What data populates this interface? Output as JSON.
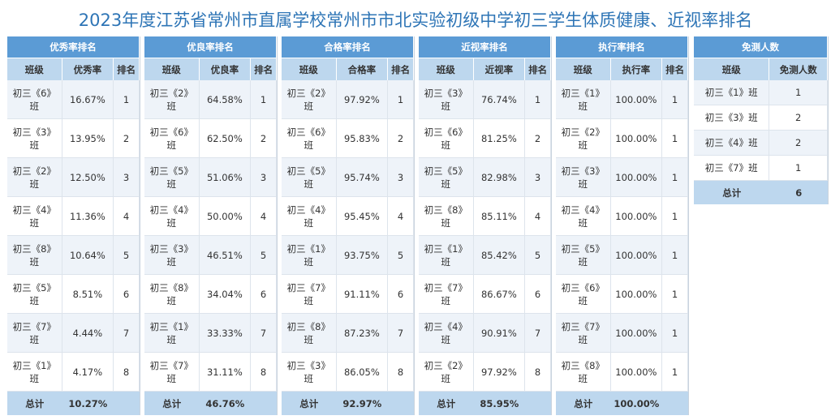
{
  "title": "2023年度江苏省常州市直属学校常州市市北实验初级中学初三学生体质健康、近视率排名",
  "panels": [
    {
      "header": "优秀率排名",
      "cols": [
        "班级",
        "优秀率",
        "排名"
      ],
      "rows": [
        [
          "初三《6》班",
          "16.67%",
          "1"
        ],
        [
          "初三《3》班",
          "13.95%",
          "2"
        ],
        [
          "初三《2》班",
          "12.50%",
          "3"
        ],
        [
          "初三《4》班",
          "11.36%",
          "4"
        ],
        [
          "初三《8》班",
          "10.64%",
          "5"
        ],
        [
          "初三《5》班",
          "8.51%",
          "6"
        ],
        [
          "初三《7》班",
          "4.44%",
          "7"
        ],
        [
          "初三《1》班",
          "4.17%",
          "8"
        ]
      ],
      "total_label": "总计",
      "total_value": "10.27%"
    },
    {
      "header": "优良率排名",
      "cols": [
        "班级",
        "优良率",
        "排名"
      ],
      "rows": [
        [
          "初三《2》班",
          "64.58%",
          "1"
        ],
        [
          "初三《6》班",
          "62.50%",
          "2"
        ],
        [
          "初三《5》班",
          "51.06%",
          "3"
        ],
        [
          "初三《4》班",
          "50.00%",
          "4"
        ],
        [
          "初三《3》班",
          "46.51%",
          "5"
        ],
        [
          "初三《8》班",
          "34.04%",
          "6"
        ],
        [
          "初三《1》班",
          "33.33%",
          "7"
        ],
        [
          "初三《7》班",
          "31.11%",
          "8"
        ]
      ],
      "total_label": "总计",
      "total_value": "46.76%"
    },
    {
      "header": "合格率排名",
      "cols": [
        "班级",
        "合格率",
        "排名"
      ],
      "rows": [
        [
          "初三《2》班",
          "97.92%",
          "1"
        ],
        [
          "初三《6》班",
          "95.83%",
          "2"
        ],
        [
          "初三《5》班",
          "95.74%",
          "3"
        ],
        [
          "初三《4》班",
          "95.45%",
          "4"
        ],
        [
          "初三《1》班",
          "93.75%",
          "5"
        ],
        [
          "初三《7》班",
          "91.11%",
          "6"
        ],
        [
          "初三《8》班",
          "87.23%",
          "7"
        ],
        [
          "初三《3》班",
          "86.05%",
          "8"
        ]
      ],
      "total_label": "总计",
      "total_value": "92.97%"
    },
    {
      "header": "近视率排名",
      "cols": [
        "班级",
        "近视率",
        "排名"
      ],
      "rows": [
        [
          "初三《3》班",
          "76.74%",
          "1"
        ],
        [
          "初三《6》班",
          "81.25%",
          "2"
        ],
        [
          "初三《5》班",
          "82.98%",
          "3"
        ],
        [
          "初三《8》班",
          "85.11%",
          "4"
        ],
        [
          "初三《1》班",
          "85.42%",
          "5"
        ],
        [
          "初三《7》班",
          "86.67%",
          "6"
        ],
        [
          "初三《4》班",
          "90.91%",
          "7"
        ],
        [
          "初三《2》班",
          "97.92%",
          "8"
        ]
      ],
      "total_label": "总计",
      "total_value": "85.95%"
    },
    {
      "header": "执行率排名",
      "cols": [
        "班级",
        "执行率",
        "排名"
      ],
      "rows": [
        [
          "初三《1》班",
          "100.00%",
          "1"
        ],
        [
          "初三《2》班",
          "100.00%",
          "1"
        ],
        [
          "初三《3》班",
          "100.00%",
          "1"
        ],
        [
          "初三《4》班",
          "100.00%",
          "1"
        ],
        [
          "初三《5》班",
          "100.00%",
          "1"
        ],
        [
          "初三《6》班",
          "100.00%",
          "1"
        ],
        [
          "初三《7》班",
          "100.00%",
          "1"
        ],
        [
          "初三《8》班",
          "100.00%",
          "1"
        ]
      ],
      "total_label": "总计",
      "total_value": "100.00%"
    }
  ],
  "exempt": {
    "header": "免测人数",
    "cols": [
      "班级",
      "免测人数"
    ],
    "rows": [
      [
        "初三《1》班",
        "1"
      ],
      [
        "初三《3》班",
        "2"
      ],
      [
        "初三《4》班",
        "2"
      ],
      [
        "初三《7》班",
        "1"
      ]
    ],
    "total_label": "总计",
    "total_value": "6"
  }
}
